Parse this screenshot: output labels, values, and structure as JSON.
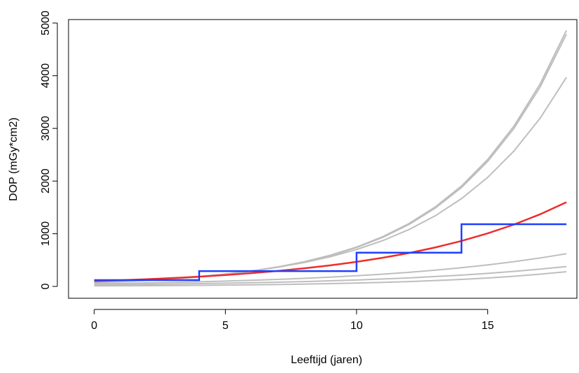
{
  "chart_data": {
    "type": "line",
    "x_label": "Leeftijd (jaren)",
    "y_label": "DOP (mGy*cm2)",
    "x": [
      0,
      1,
      2,
      3,
      4,
      5,
      6,
      7,
      8,
      9,
      10,
      11,
      12,
      13,
      14,
      15,
      16,
      17,
      18
    ],
    "series": [
      {
        "color": "#bebebe",
        "values": [
          72,
          91,
          115,
          145,
          184,
          232,
          293,
          371,
          468,
          592,
          748,
          945,
          1194,
          1509,
          1906,
          2409,
          3044,
          3846,
          4860
        ]
      },
      {
        "color": "#bebebe",
        "values": [
          71,
          90,
          113,
          143,
          181,
          229,
          289,
          365,
          461,
          583,
          737,
          931,
          1176,
          1486,
          1877,
          2373,
          2998,
          3788,
          4787
        ]
      },
      {
        "color": "#bebebe",
        "values": [
          80,
          99,
          123,
          153,
          190,
          236,
          294,
          365,
          453,
          563,
          700,
          869,
          1080,
          1341,
          1666,
          2070,
          2571,
          3194,
          3968
        ]
      },
      {
        "color": "#bebebe",
        "values": [
          50,
          58,
          66,
          76,
          88,
          101,
          116,
          133,
          153,
          176,
          203,
          233,
          268,
          309,
          355,
          408,
          470,
          540,
          621
        ]
      },
      {
        "color": "#bebebe",
        "values": [
          30,
          35,
          40,
          46,
          53,
          61,
          70,
          80,
          92,
          106,
          122,
          141,
          162,
          187,
          215,
          247,
          285,
          328,
          377
        ]
      },
      {
        "color": "#bebebe",
        "values": [
          10,
          12,
          14,
          17,
          21,
          25,
          30,
          36,
          44,
          53,
          64,
          76,
          92,
          111,
          133,
          160,
          193,
          232,
          279
        ]
      },
      {
        "color": "#ee2c2c",
        "values": [
          100,
          117,
          136,
          159,
          185,
          216,
          252,
          294,
          343,
          400,
          466,
          544,
          634,
          740,
          863,
          1007,
          1174,
          1370,
          1598
        ]
      },
      {
        "color": "#1f3fff",
        "step": "post",
        "x": [
          0,
          4,
          10,
          14,
          18
        ],
        "values": [
          120,
          290,
          640,
          1180,
          1180
        ]
      }
    ],
    "xlim": [
      -0.98,
      18.4
    ],
    "ylim": [
      -225,
      5066
    ],
    "xticks": [
      0,
      5,
      10,
      15
    ],
    "yticks": [
      0,
      1000,
      2000,
      3000,
      4000,
      5000
    ],
    "grid": false
  }
}
